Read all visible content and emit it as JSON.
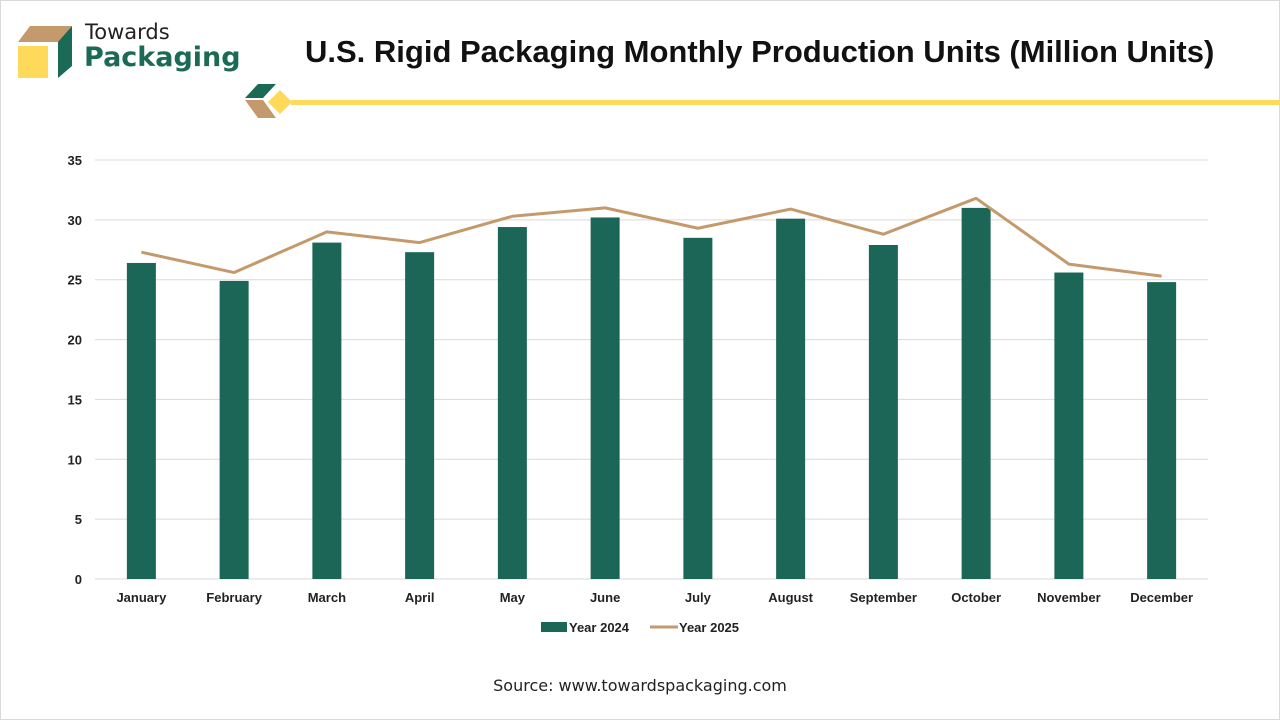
{
  "brand": {
    "line1": "Towards",
    "line2": "Packaging",
    "colors": {
      "green": "#1b6a55",
      "tan": "#c49a6c",
      "yellow": "#ffd95a"
    }
  },
  "source": "Source: www.towardspackaging.com",
  "chart_data": {
    "type": "bar",
    "title": "U.S. Rigid Packaging Monthly Production Units (Million Units)",
    "xlabel": "",
    "ylabel": "",
    "ylim": [
      0,
      35
    ],
    "yticks": [
      0,
      5,
      10,
      15,
      20,
      25,
      30,
      35
    ],
    "grid": true,
    "legend_position": "bottom",
    "categories": [
      "January",
      "February",
      "March",
      "April",
      "May",
      "June",
      "July",
      "August",
      "September",
      "October",
      "November",
      "December"
    ],
    "series": [
      {
        "name": "Year 2024",
        "type": "bar",
        "color": "#1b6657",
        "values": [
          26.4,
          24.9,
          28.1,
          27.3,
          29.4,
          30.2,
          28.5,
          30.1,
          27.9,
          31.0,
          25.6,
          24.8
        ]
      },
      {
        "name": "Year 2025",
        "type": "line",
        "color": "#c49a6c",
        "values": [
          27.3,
          25.6,
          29.0,
          28.1,
          30.3,
          31.0,
          29.3,
          30.9,
          28.8,
          31.8,
          26.3,
          25.3
        ]
      }
    ]
  }
}
